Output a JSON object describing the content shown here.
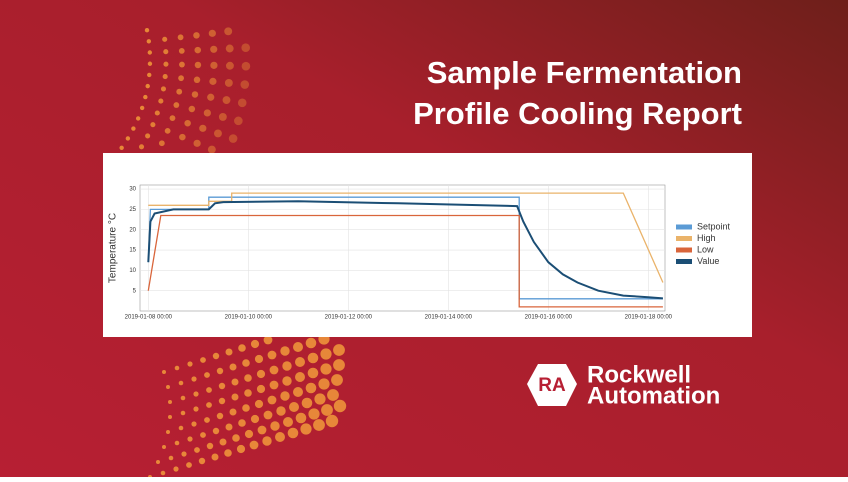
{
  "chart_data": {
    "type": "line",
    "title_line1": "Sample Fermentation",
    "title_line2": "Profile Cooling Report",
    "y_label": "Temperature °C",
    "xlim": [
      "2019-01-07 20:00",
      "2019-01-18 08:00"
    ],
    "xticks": [
      "2019-01-08 00:00",
      "2019-01-10 00:00",
      "2019-01-12 00:00",
      "2019-01-14 00:00",
      "2019-01-16 00:00",
      "2019-01-18 00:00"
    ],
    "ylim": [
      0,
      31
    ],
    "yticks": [
      5,
      10,
      15,
      20,
      25,
      30
    ],
    "grid": true,
    "legend": "right",
    "series": [
      {
        "name": "Setpoint",
        "color": "#5b9bd5",
        "x": [
          "2019-01-08 00:00",
          "2019-01-08 01:00",
          "2019-01-09 05:00",
          "2019-01-09 05:00",
          "2019-01-15 10:00",
          "2019-01-15 10:00",
          "2019-01-18 07:00"
        ],
        "values": [
          12,
          25,
          25,
          28,
          28,
          3,
          3
        ]
      },
      {
        "name": "High",
        "color": "#eab36a",
        "x": [
          "2019-01-08 00:00",
          "2019-01-09 05:00",
          "2019-01-09 05:00",
          "2019-01-09 16:00",
          "2019-01-09 16:00",
          "2019-01-17 12:00",
          "2019-01-18 07:00"
        ],
        "values": [
          26,
          26,
          27,
          27,
          29,
          29,
          7
        ]
      },
      {
        "name": "Low",
        "color": "#d9653b",
        "x": [
          "2019-01-08 00:00",
          "2019-01-08 06:00",
          "2019-01-15 10:00",
          "2019-01-15 10:00",
          "2019-01-18 07:00"
        ],
        "values": [
          5,
          23.5,
          23.5,
          1,
          1
        ]
      },
      {
        "name": "Value",
        "color": "#1b4e75",
        "x": [
          "2019-01-08 00:00",
          "2019-01-08 01:00",
          "2019-01-08 03:00",
          "2019-01-08 12:00",
          "2019-01-09 05:00",
          "2019-01-09 08:00",
          "2019-01-09 12:00",
          "2019-01-11 00:00",
          "2019-01-13 00:00",
          "2019-01-15 09:00",
          "2019-01-15 12:00",
          "2019-01-15 17:00",
          "2019-01-16 00:00",
          "2019-01-16 07:00",
          "2019-01-16 14:00",
          "2019-01-17 00:00",
          "2019-01-17 12:00",
          "2019-01-18 00:00",
          "2019-01-18 07:00"
        ],
        "values": [
          12,
          22,
          24,
          25,
          25,
          26.5,
          26.8,
          27,
          26.5,
          25.8,
          22,
          17,
          12,
          9,
          7,
          5,
          3.8,
          3.4,
          3.1
        ]
      }
    ]
  },
  "brand": {
    "mark": "RA",
    "line1": "Rockwell",
    "line2": "Automation"
  }
}
